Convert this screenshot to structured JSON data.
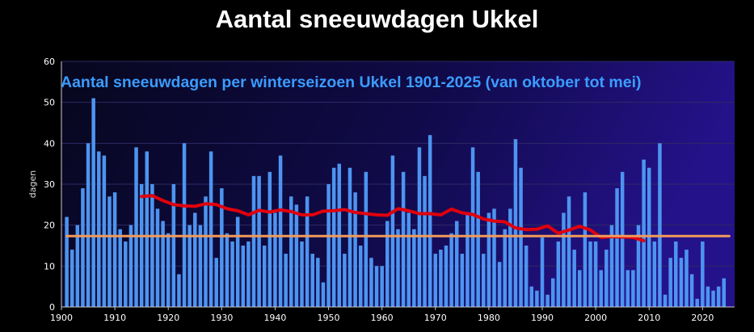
{
  "title": "Aantal sneeuwdagen Ukkel",
  "chart_data": {
    "type": "bar",
    "title": "Aantal sneeuwdagen per winterseizoen Ukkel 1901-2025 (van oktober tot mei)",
    "xlabel": "",
    "ylabel": "dagen",
    "xlim": [
      1900,
      2026
    ],
    "ylim": [
      0,
      60
    ],
    "x_ticks": [
      1900,
      1910,
      1920,
      1930,
      1940,
      1950,
      1960,
      1970,
      1980,
      1990,
      2000,
      2010,
      2020
    ],
    "y_ticks": [
      0,
      10,
      20,
      30,
      40,
      50,
      60
    ],
    "grid": true,
    "bar_color": "#4d94f0",
    "series": [
      {
        "type": "bar",
        "x": [
          1901,
          1902,
          1903,
          1904,
          1905,
          1906,
          1907,
          1908,
          1909,
          1910,
          1911,
          1912,
          1913,
          1914,
          1915,
          1916,
          1917,
          1918,
          1919,
          1920,
          1921,
          1922,
          1923,
          1924,
          1925,
          1926,
          1927,
          1928,
          1929,
          1930,
          1931,
          1932,
          1933,
          1934,
          1935,
          1936,
          1937,
          1938,
          1939,
          1940,
          1941,
          1942,
          1943,
          1944,
          1945,
          1946,
          1947,
          1948,
          1949,
          1950,
          1951,
          1952,
          1953,
          1954,
          1955,
          1956,
          1957,
          1958,
          1959,
          1960,
          1961,
          1962,
          1963,
          1964,
          1965,
          1966,
          1967,
          1968,
          1969,
          1970,
          1971,
          1972,
          1973,
          1974,
          1975,
          1976,
          1977,
          1978,
          1979,
          1980,
          1981,
          1982,
          1983,
          1984,
          1985,
          1986,
          1987,
          1988,
          1989,
          1990,
          1991,
          1992,
          1993,
          1994,
          1995,
          1996,
          1997,
          1998,
          1999,
          2000,
          2001,
          2002,
          2003,
          2004,
          2005,
          2006,
          2007,
          2008,
          2009,
          2010,
          2011,
          2012,
          2013,
          2014,
          2015,
          2016,
          2017,
          2018,
          2019,
          2020,
          2021,
          2022,
          2023,
          2024,
          2025
        ],
        "values": [
          22,
          14,
          20,
          29,
          40,
          51,
          38,
          37,
          27,
          28,
          19,
          16,
          20,
          39,
          30,
          38,
          30,
          24,
          21,
          18,
          30,
          8,
          40,
          20,
          23,
          20,
          27,
          38,
          12,
          29,
          18,
          16,
          22,
          15,
          16,
          32,
          32,
          15,
          33,
          23,
          37,
          13,
          27,
          25,
          16,
          27,
          13,
          12,
          6,
          30,
          34,
          35,
          13,
          34,
          28,
          15,
          33,
          12,
          10,
          10,
          21,
          37,
          19,
          33,
          23,
          19,
          39,
          32,
          42,
          13,
          14,
          15,
          18,
          21,
          13,
          23,
          39,
          33,
          13,
          23,
          24,
          11,
          19,
          24,
          41,
          34,
          15,
          5,
          4,
          17,
          3,
          7,
          16,
          23,
          27,
          14,
          9,
          28,
          16,
          16,
          9,
          14,
          20,
          29,
          33,
          9,
          9,
          20,
          36,
          34,
          16,
          40,
          3,
          12,
          16,
          12,
          14,
          8,
          2,
          16,
          5,
          4,
          5,
          7,
          0
        ]
      },
      {
        "type": "line",
        "name": "",
        "color": "#e0000c",
        "x": [
          1915,
          1917,
          1919,
          1921,
          1923,
          1925,
          1927,
          1929,
          1931,
          1933,
          1935,
          1937,
          1939,
          1941,
          1943,
          1945,
          1947,
          1949,
          1951,
          1953,
          1955,
          1957,
          1959,
          1961,
          1963,
          1965,
          1967,
          1969,
          1971,
          1973,
          1975,
          1977,
          1979,
          1981,
          1983,
          1985,
          1987,
          1989,
          1991,
          1993,
          1995,
          1997,
          1999,
          2001,
          2003,
          2005,
          2007,
          2009
        ],
        "values": [
          27,
          27.2,
          26,
          25,
          24.7,
          24.6,
          25.2,
          25,
          24,
          23.5,
          22.5,
          23.6,
          23.2,
          23.7,
          23.3,
          22.5,
          22.5,
          23.4,
          23.5,
          23.8,
          23.1,
          22.8,
          22.5,
          22.4,
          24,
          23.5,
          22.8,
          22.8,
          22.5,
          23.9,
          23,
          22.6,
          21.5,
          21,
          20.8,
          19.3,
          18.9,
          19,
          19.8,
          18,
          18.8,
          19.7,
          18.8,
          17,
          17.2,
          17.1,
          17,
          16.2
        ]
      },
      {
        "type": "line",
        "name": "",
        "color": "#f09a5a",
        "x": [
          1901,
          2025
        ],
        "values": [
          17.3,
          17.3
        ]
      }
    ]
  }
}
